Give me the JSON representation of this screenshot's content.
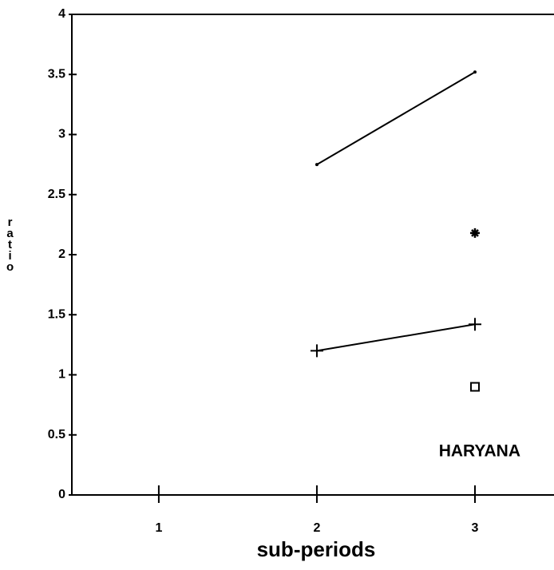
{
  "chart_data": {
    "type": "line",
    "xlabel": "sub-periods",
    "ylabel": "ratio",
    "annotation": "HARYANA",
    "xlim": [
      0.45,
      3.5
    ],
    "xticks": [
      1,
      2,
      3
    ],
    "ylim": [
      0,
      4
    ],
    "yticks": [
      0,
      0.5,
      1,
      1.5,
      2,
      2.5,
      3,
      3.5,
      4
    ],
    "color": "#000000",
    "series": [
      {
        "marker": "dot",
        "x": [
          2,
          3
        ],
        "values": [
          2.75,
          3.52
        ]
      },
      {
        "marker": "plus",
        "x": [
          2,
          3
        ],
        "values": [
          1.2,
          1.42
        ]
      },
      {
        "marker": "asterisk",
        "x": [
          3
        ],
        "values": [
          2.18
        ]
      },
      {
        "marker": "square",
        "x": [
          3
        ],
        "values": [
          0.9
        ]
      }
    ]
  }
}
